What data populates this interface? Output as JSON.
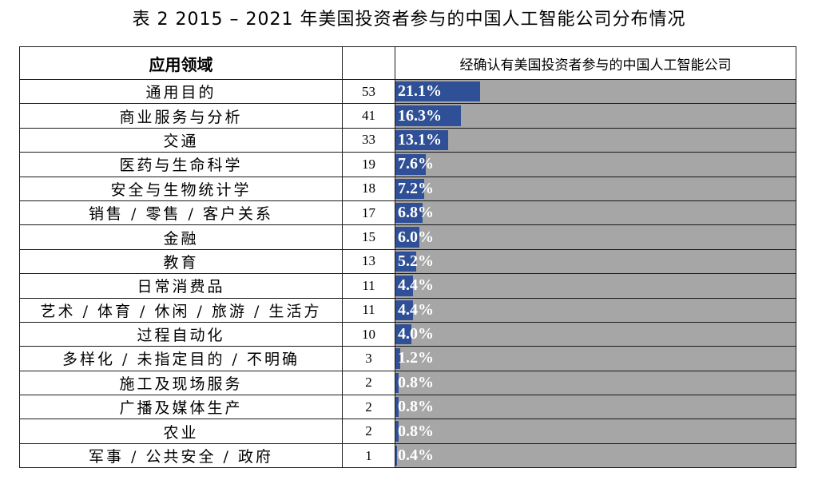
{
  "title": "表 2  2015 – 2021 年美国投资者参与的中国人工智能公司分布情况",
  "header": {
    "col_category": "应用领域",
    "col_count": "",
    "col_share": "经确认有美国投资者参与的中国人工智能公司"
  },
  "colors": {
    "bar_fill": "#2f4f96",
    "bar_track": "#a6a6a6",
    "label": "#ffffff"
  },
  "rows": [
    {
      "category": "通用目的",
      "count": "53",
      "pct": "21.1%",
      "value": 21.1
    },
    {
      "category": "商业服务与分析",
      "count": "41",
      "pct": "16.3%",
      "value": 16.3
    },
    {
      "category": "交通",
      "count": "33",
      "pct": "13.1%",
      "value": 13.1
    },
    {
      "category": "医药与生命科学",
      "count": "19",
      "pct": "7.6%",
      "value": 7.6
    },
    {
      "category": "安全与生物统计学",
      "count": "18",
      "pct": "7.2%",
      "value": 7.2
    },
    {
      "category": "销售 / 零售 / 客户关系",
      "count": "17",
      "pct": "6.8%",
      "value": 6.8
    },
    {
      "category": "金融",
      "count": "15",
      "pct": "6.0%",
      "value": 6.0
    },
    {
      "category": "教育",
      "count": "13",
      "pct": "5.2%",
      "value": 5.2
    },
    {
      "category": "日常消费品",
      "count": "11",
      "pct": "4.4%",
      "value": 4.4
    },
    {
      "category": "艺术 / 体育 / 休闲 / 旅游 / 生活方",
      "count": "11",
      "pct": "4.4%",
      "value": 4.4
    },
    {
      "category": "过程自动化",
      "count": "10",
      "pct": "4.0%",
      "value": 4.0
    },
    {
      "category": "多样化 / 未指定目的 / 不明确",
      "count": "3",
      "pct": "1.2%",
      "value": 1.2
    },
    {
      "category": "施工及现场服务",
      "count": "2",
      "pct": "0.8%",
      "value": 0.8
    },
    {
      "category": "广播及媒体生产",
      "count": "2",
      "pct": "0.8%",
      "value": 0.8
    },
    {
      "category": "农业",
      "count": "2",
      "pct": "0.8%",
      "value": 0.8
    },
    {
      "category": "军事 / 公共安全 / 政府",
      "count": "1",
      "pct": "0.4%",
      "value": 0.4
    }
  ]
}
